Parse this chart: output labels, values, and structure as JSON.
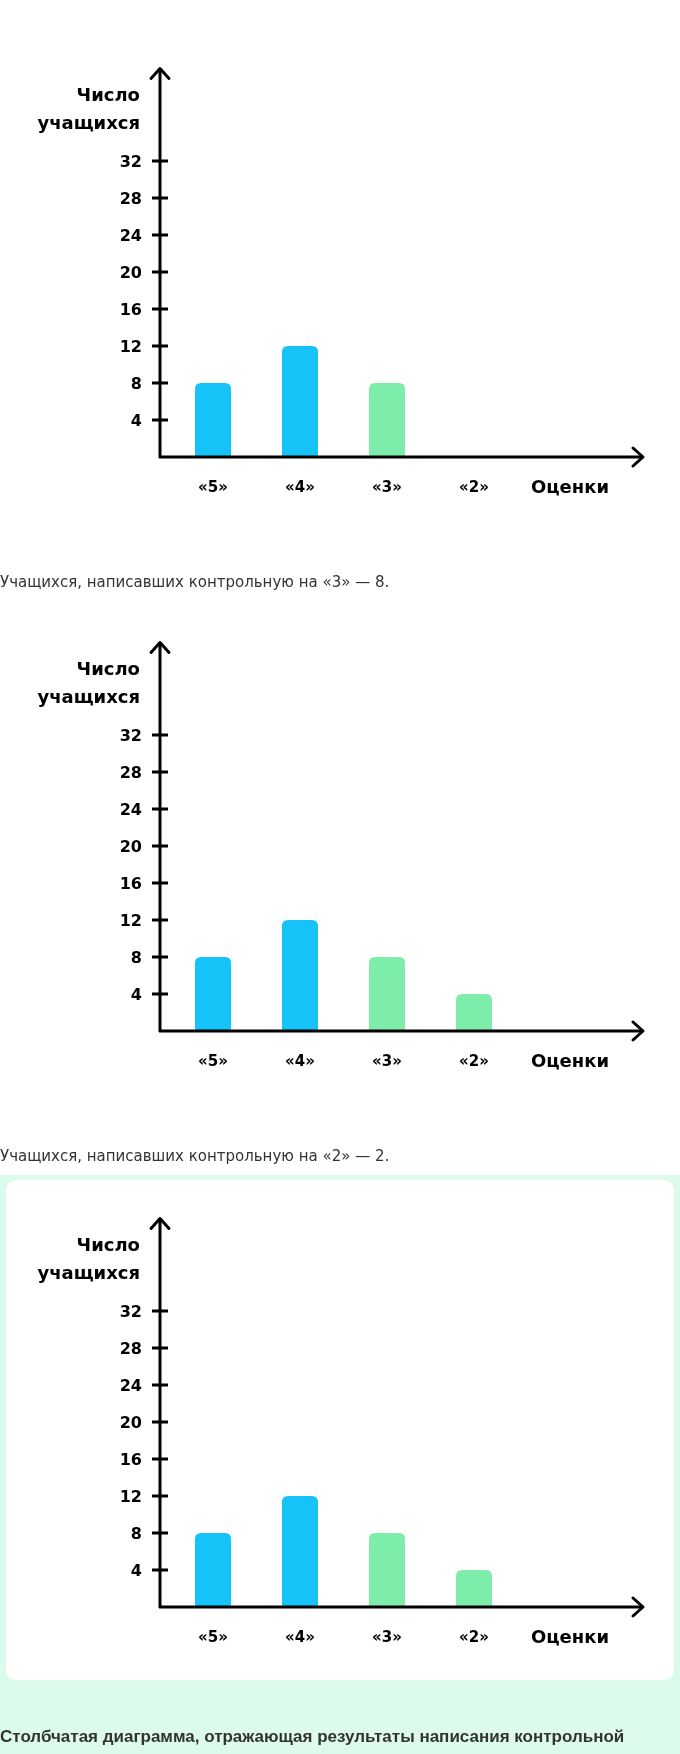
{
  "chart_data": [
    {
      "type": "bar",
      "ylabel": "Число учащихся",
      "xlabel": "Оценки",
      "categories": [
        "«5»",
        "«4»",
        "«3»",
        "«2»"
      ],
      "values": [
        8,
        12,
        8,
        null
      ],
      "colors": [
        "#16c3f8",
        "#16c3f8",
        "#7eedab",
        null
      ],
      "ylim": [
        0,
        42
      ],
      "yticks": [
        4,
        8,
        12,
        16,
        20,
        24,
        28,
        32
      ],
      "annotations": [
        "Учащихся, написавших контрольную на «3» — 8."
      ]
    },
    {
      "type": "bar",
      "ylabel": "Число учащихся",
      "xlabel": "Оценки",
      "categories": [
        "«5»",
        "«4»",
        "«3»",
        "«2»"
      ],
      "values": [
        8,
        12,
        8,
        4
      ],
      "colors": [
        "#16c3f8",
        "#16c3f8",
        "#7eedab",
        "#7eedab"
      ],
      "ylim": [
        0,
        42
      ],
      "yticks": [
        4,
        8,
        12,
        16,
        20,
        24,
        28,
        32
      ],
      "annotations": [
        "Учащихся, написавших контрольную на «2» — 2."
      ]
    },
    {
      "type": "bar",
      "ylabel": "Число учащихся",
      "xlabel": "Оценки",
      "categories": [
        "«5»",
        "«4»",
        "«3»",
        "«2»"
      ],
      "values": [
        8,
        12,
        8,
        4
      ],
      "colors": [
        "#16c3f8",
        "#16c3f8",
        "#7eedab",
        "#7eedab"
      ],
      "ylim": [
        0,
        42
      ],
      "yticks": [
        4,
        8,
        12,
        16,
        20,
        24,
        28,
        32
      ],
      "annotations": [
        "Столбчатая диаграмма, отражающая результаты написания контрольной"
      ]
    }
  ]
}
